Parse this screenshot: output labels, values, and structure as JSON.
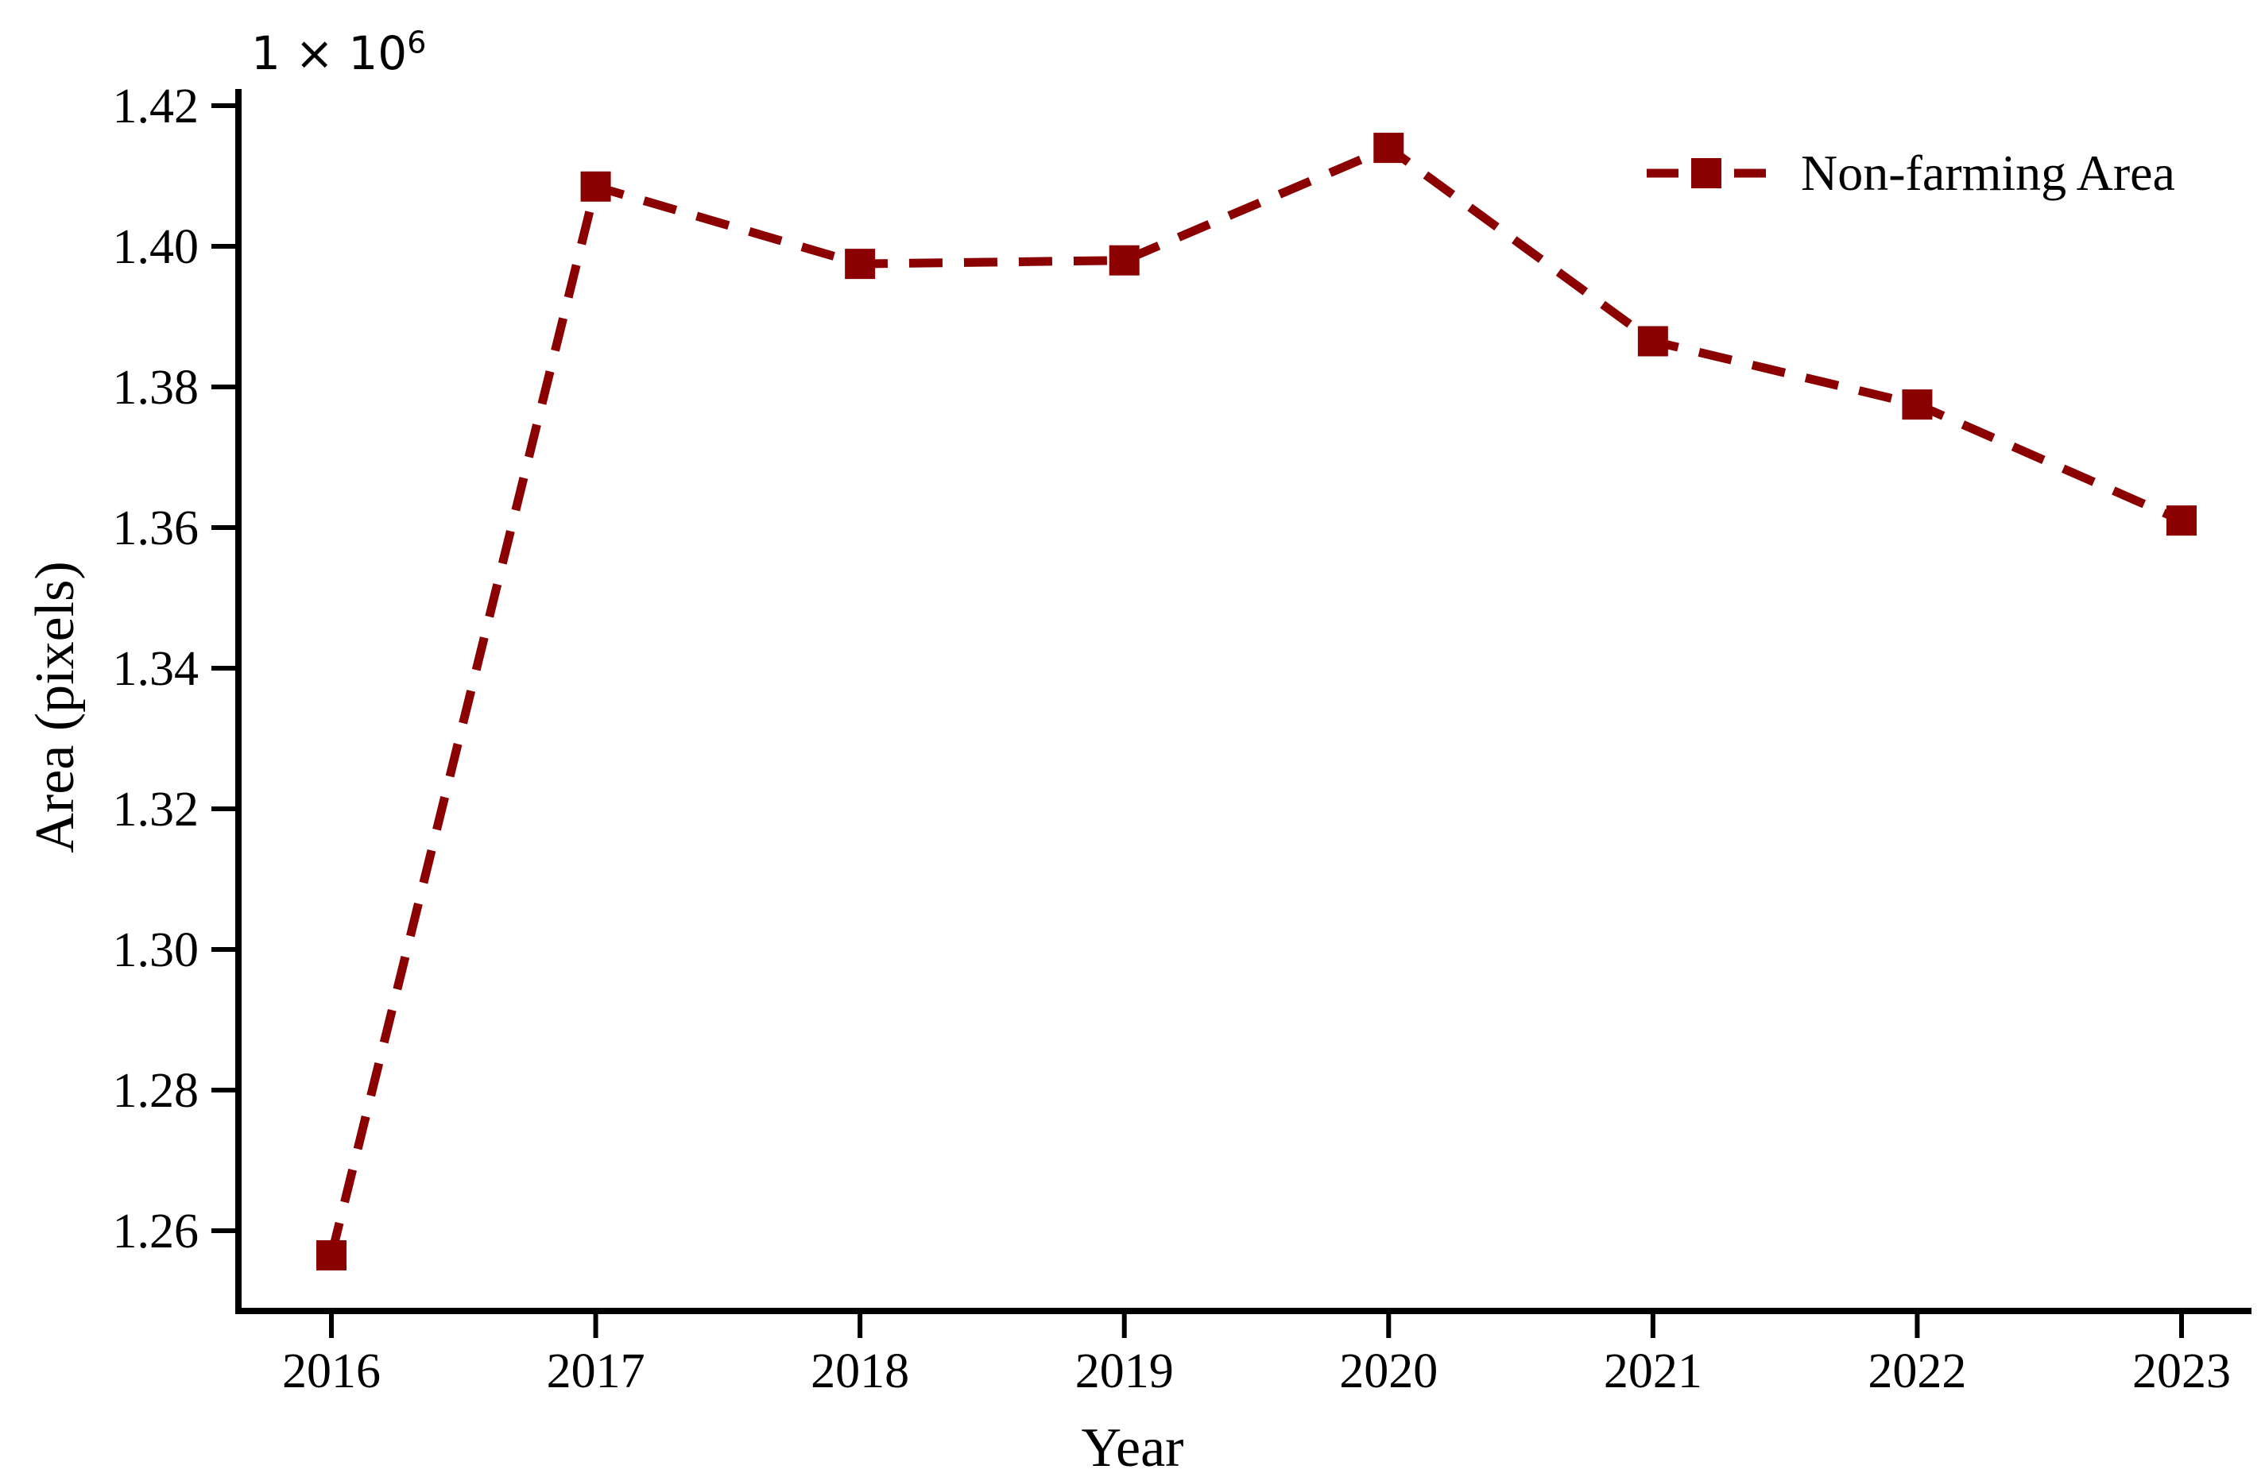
{
  "figure": {
    "background": "#ffffff",
    "axis_color": "#000000"
  },
  "chart_data": {
    "type": "line",
    "title": "",
    "xlabel": "Year",
    "ylabel": "Area (pixels)",
    "y_scale_offset": {
      "base": "1 × 10",
      "exponent": "6"
    },
    "x": [
      2016,
      2017,
      2018,
      2019,
      2020,
      2021,
      2022,
      2023
    ],
    "x_tick_labels": [
      "2016",
      "2017",
      "2018",
      "2019",
      "2020",
      "2021",
      "2022",
      "2023"
    ],
    "y_tick_values": [
      1260000,
      1280000,
      1300000,
      1320000,
      1340000,
      1360000,
      1380000,
      1400000,
      1420000
    ],
    "y_tick_labels": [
      "1.26",
      "1.28",
      "1.30",
      "1.32",
      "1.34",
      "1.36",
      "1.38",
      "1.40",
      "1.42"
    ],
    "ylim": [
      1249000,
      1423000
    ],
    "grid": false,
    "legend_position": "upper-right",
    "series": [
      {
        "name": "Non-farming Area",
        "values": [
          1256500,
          1408500,
          1397500,
          1398000,
          1414000,
          1386500,
          1377500,
          1361000
        ],
        "color": "#8B0000",
        "line_style": "dashed",
        "marker": "square"
      }
    ]
  }
}
